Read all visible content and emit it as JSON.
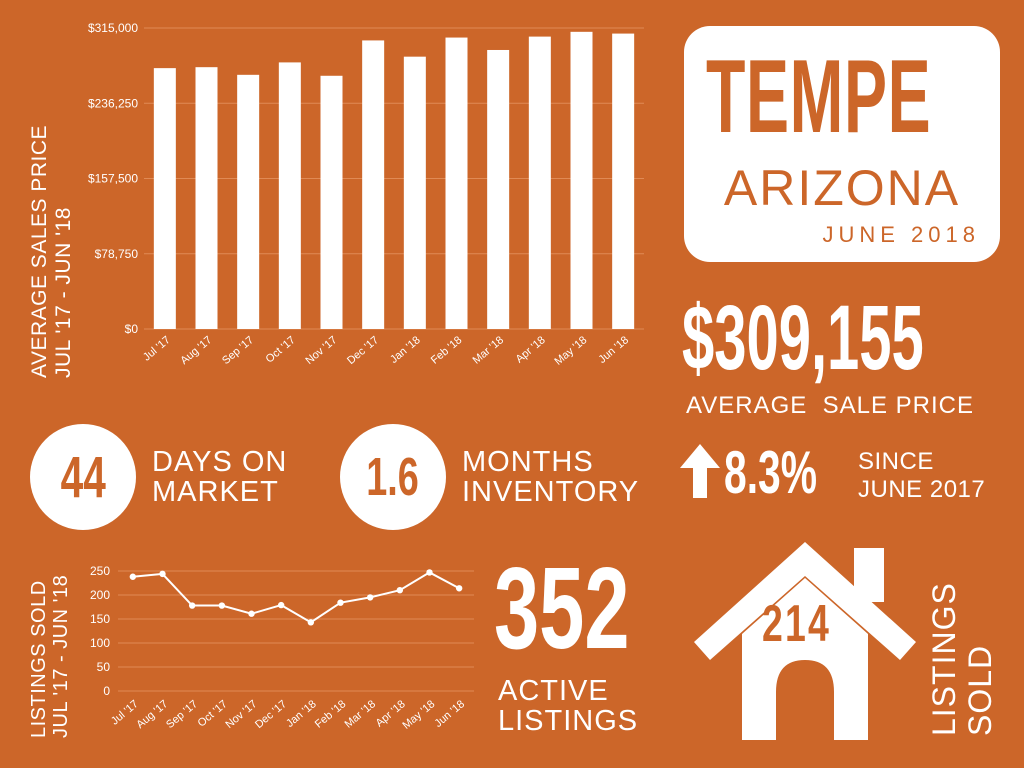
{
  "colors": {
    "background": "#cc6629",
    "foreground": "#ffffff",
    "grid": "#e08a55"
  },
  "title_card": {
    "city": "TEMPE",
    "state": "ARIZONA",
    "date": "JUNE 2018"
  },
  "average_price": {
    "value": "$309,155",
    "label": "AVERAGE  SALE PRICE"
  },
  "days_on_market": {
    "value": "44",
    "label_line1": "DAYS ON",
    "label_line2": "MARKET"
  },
  "months_inventory": {
    "value": "1.6",
    "label_line1": "MONTHS",
    "label_line2": "INVENTORY"
  },
  "change": {
    "icon": "arrow-up-icon",
    "value": "8.3%",
    "label_line1": "SINCE",
    "label_line2": "JUNE 2017"
  },
  "active_listings": {
    "value": "352",
    "label_line1": "ACTIVE",
    "label_line2": "LISTINGS"
  },
  "sold": {
    "icon": "house-icon",
    "value": "214",
    "label_line1": "LISTINGS",
    "label_line2": "SOLD"
  },
  "chart_data": [
    {
      "type": "bar",
      "ylabel_line1": "AVERAGE SALES PRICE",
      "ylabel_line2": "JUL '17 - JUN '18",
      "categories": [
        "Jul '17",
        "Aug '17",
        "Sep '17",
        "Oct '17",
        "Nov '17",
        "Dec '17",
        "Jan '18",
        "Feb '18",
        "Mar '18",
        "Apr '18",
        "May '18",
        "Jun '18"
      ],
      "values": [
        273000,
        274000,
        266000,
        279000,
        265000,
        302000,
        285000,
        305000,
        292000,
        306000,
        311000,
        309155
      ],
      "ylim": [
        0,
        315000
      ],
      "yticks": [
        0,
        78750,
        157500,
        236250,
        315000
      ],
      "ytick_labels": [
        "$0",
        "$78,750",
        "$157,500",
        "$236,250",
        "$315,000"
      ],
      "grid": true
    },
    {
      "type": "line",
      "ylabel_line1": "LISTINGS SOLD",
      "ylabel_line2": "JUL '17 - JUN '18",
      "categories": [
        "Jul '17",
        "Aug '17",
        "Sep '17",
        "Oct '17",
        "Nov '17",
        "Dec '17",
        "Jan '18",
        "Feb '18",
        "Mar '18",
        "Apr '18",
        "May '18",
        "Jun '18"
      ],
      "values": [
        238,
        244,
        178,
        178,
        161,
        179,
        143,
        184,
        195,
        210,
        247,
        214
      ],
      "ylim": [
        0,
        250
      ],
      "yticks": [
        0,
        50,
        100,
        150,
        200,
        250
      ],
      "ytick_labels": [
        "0",
        "50",
        "100",
        "150",
        "200",
        "250"
      ],
      "grid": true
    }
  ]
}
